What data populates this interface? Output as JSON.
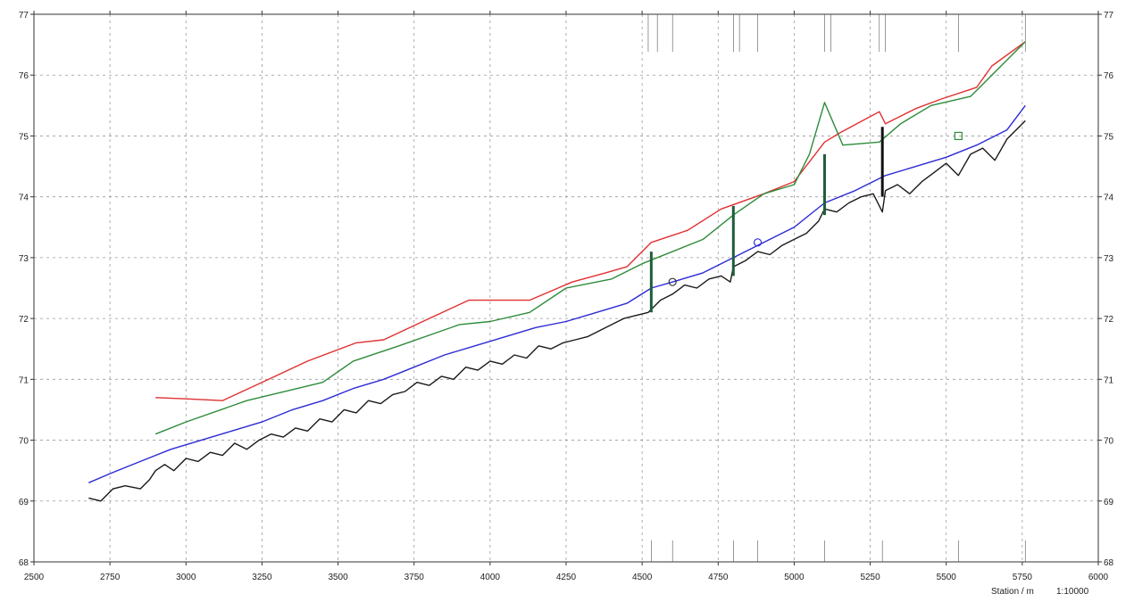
{
  "chart_data": {
    "type": "line",
    "xlabel": "Station / m",
    "scale_label": "1:10000",
    "xlim": [
      2500,
      6000
    ],
    "ylim": [
      68,
      77
    ],
    "x_ticks": [
      2500,
      2750,
      3000,
      3250,
      3500,
      3750,
      4000,
      4250,
      4500,
      4750,
      5000,
      5250,
      5500,
      5750,
      6000
    ],
    "y_ticks": [
      68,
      69,
      70,
      71,
      72,
      73,
      74,
      75,
      76,
      77
    ],
    "grid": true,
    "series": [
      {
        "color": "#e03030",
        "x": [
          2900,
          3000,
          3120,
          3250,
          3400,
          3560,
          3650,
          3800,
          3930,
          4000,
          4130,
          4270,
          4380,
          4450,
          4530,
          4650,
          4760,
          4900,
          5000,
          5100,
          5150,
          5280,
          5300,
          5400,
          5480,
          5600,
          5650,
          5760
        ],
        "values": [
          70.7,
          70.68,
          70.65,
          70.95,
          71.3,
          71.6,
          71.65,
          72.0,
          72.3,
          72.3,
          72.3,
          72.6,
          72.75,
          72.85,
          73.25,
          73.45,
          73.8,
          74.05,
          74.25,
          74.9,
          75.05,
          75.4,
          75.2,
          75.45,
          75.6,
          75.8,
          76.15,
          76.55
        ]
      },
      {
        "color": "#2e8b3a",
        "x": [
          2900,
          3000,
          3200,
          3450,
          3550,
          3700,
          3900,
          4000,
          4130,
          4250,
          4400,
          4500,
          4700,
          4800,
          4900,
          5000,
          5050,
          5100,
          5160,
          5280,
          5350,
          5450,
          5580,
          5760
        ],
        "values": [
          70.1,
          70.3,
          70.65,
          70.95,
          71.3,
          71.55,
          71.9,
          71.95,
          72.1,
          72.5,
          72.65,
          72.9,
          73.3,
          73.7,
          74.05,
          74.2,
          74.7,
          75.55,
          74.85,
          74.9,
          75.2,
          75.5,
          75.65,
          76.55
        ]
      },
      {
        "color": "#2b2bd6",
        "x": [
          2680,
          2750,
          2850,
          2950,
          3050,
          3150,
          3250,
          3350,
          3450,
          3550,
          3650,
          3750,
          3850,
          3950,
          4050,
          4150,
          4250,
          4350,
          4450,
          4530,
          4600,
          4700,
          4800,
          4900,
          5000,
          5100,
          5200,
          5300,
          5400,
          5500,
          5600,
          5700,
          5760
        ],
        "values": [
          69.3,
          69.45,
          69.65,
          69.85,
          70.0,
          70.15,
          70.3,
          70.5,
          70.65,
          70.85,
          71.0,
          71.2,
          71.4,
          71.55,
          71.7,
          71.85,
          71.95,
          72.1,
          72.25,
          72.5,
          72.6,
          72.75,
          73.0,
          73.25,
          73.5,
          73.9,
          74.1,
          74.35,
          74.5,
          74.65,
          74.85,
          75.1,
          75.5
        ]
      },
      {
        "color": "#1a1a1a",
        "x": [
          2680,
          2720,
          2760,
          2800,
          2850,
          2880,
          2900,
          2930,
          2960,
          3000,
          3040,
          3080,
          3120,
          3160,
          3200,
          3240,
          3280,
          3320,
          3360,
          3400,
          3440,
          3480,
          3520,
          3560,
          3600,
          3640,
          3680,
          3720,
          3760,
          3800,
          3840,
          3880,
          3920,
          3960,
          4000,
          4040,
          4080,
          4120,
          4160,
          4200,
          4240,
          4280,
          4320,
          4360,
          4400,
          4440,
          4480,
          4520,
          4560,
          4600,
          4640,
          4680,
          4720,
          4760,
          4790,
          4800,
          4840,
          4880,
          4920,
          4960,
          5000,
          5040,
          5080,
          5100,
          5140,
          5180,
          5220,
          5260,
          5290,
          5300,
          5340,
          5380,
          5420,
          5460,
          5500,
          5540,
          5580,
          5620,
          5660,
          5700,
          5760
        ],
        "values": [
          69.05,
          69.0,
          69.2,
          69.25,
          69.2,
          69.35,
          69.5,
          69.6,
          69.5,
          69.7,
          69.65,
          69.8,
          69.75,
          69.95,
          69.85,
          70.0,
          70.1,
          70.05,
          70.2,
          70.15,
          70.35,
          70.3,
          70.5,
          70.45,
          70.65,
          70.6,
          70.75,
          70.8,
          70.95,
          70.9,
          71.05,
          71.0,
          71.2,
          71.15,
          71.3,
          71.25,
          71.4,
          71.35,
          71.55,
          71.5,
          71.6,
          71.65,
          71.7,
          71.8,
          71.9,
          72.0,
          72.05,
          72.1,
          72.3,
          72.4,
          72.55,
          72.5,
          72.65,
          72.7,
          72.6,
          72.85,
          72.95,
          73.1,
          73.05,
          73.2,
          73.3,
          73.4,
          73.6,
          73.8,
          73.75,
          73.9,
          74.0,
          74.05,
          73.75,
          74.1,
          74.2,
          74.05,
          74.25,
          74.4,
          74.55,
          74.35,
          74.7,
          74.8,
          74.6,
          74.95,
          75.25
        ]
      }
    ],
    "vertical_markers": [
      {
        "x": 4530,
        "from": 72.1,
        "to": 73.1,
        "color": "#1f5e3a"
      },
      {
        "x": 4800,
        "from": 72.7,
        "to": 73.85,
        "color": "#1f5e3a"
      },
      {
        "x": 5100,
        "from": 73.7,
        "to": 74.7,
        "color": "#1f5e3a"
      },
      {
        "x": 5290,
        "from": 74.0,
        "to": 75.15,
        "color": "#111111"
      }
    ],
    "point_markers": [
      {
        "x": 4600,
        "y": 72.6,
        "color": "#333333",
        "shape": "circle"
      },
      {
        "x": 4880,
        "y": 73.25,
        "color": "#2b2bd6",
        "shape": "circle"
      },
      {
        "x": 5540,
        "y": 75.0,
        "color": "#2e8b3a",
        "shape": "square"
      }
    ],
    "top_annotation_x": [
      4520,
      4550,
      4600,
      4800,
      4820,
      4880,
      5100,
      5120,
      5280,
      5300,
      5540,
      5760
    ],
    "bottom_annotation_x": [
      4530,
      4600,
      4800,
      4880,
      5100,
      5290,
      5540,
      5760
    ]
  }
}
